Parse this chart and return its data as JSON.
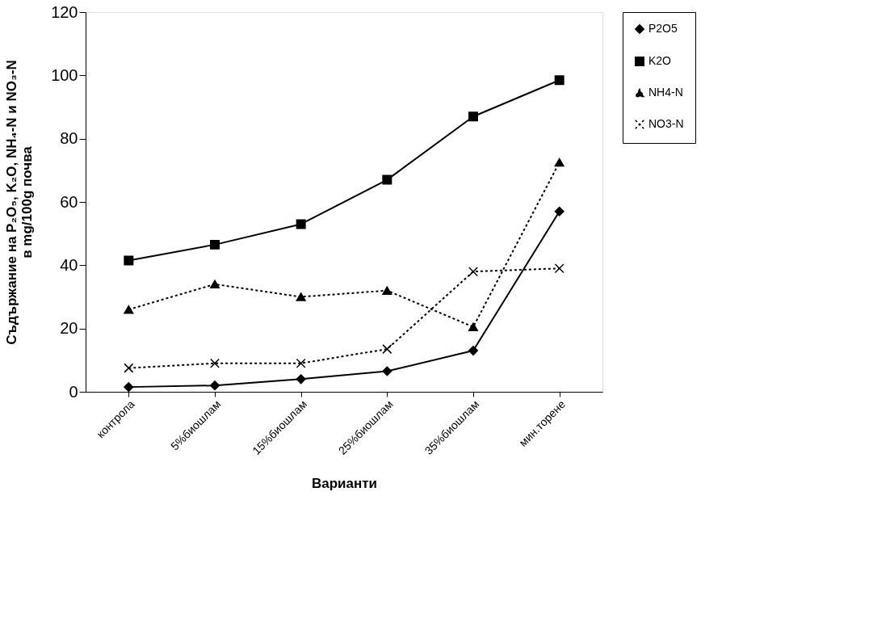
{
  "chart_data": {
    "type": "line",
    "xlabel": "Варианти",
    "ylabel": [
      "Съдържание на P₂O₅, K₂O, NH₄-N и  NO₃-N",
      "в mg/100g почва"
    ],
    "categories": [
      "контрола",
      "5%биошлам",
      "15%биошлам",
      "25%биошлам",
      "35%биошлам",
      "мин.торене"
    ],
    "ylim": [
      0,
      120
    ],
    "yticks": [
      0,
      20,
      40,
      60,
      80,
      100,
      120
    ],
    "grid": false,
    "legend": "right",
    "series": [
      {
        "name": "P2O5",
        "color": "#000000",
        "marker": "diamond",
        "line_style": "solid",
        "values": [
          1.5,
          2,
          4,
          6.5,
          13,
          57
        ]
      },
      {
        "name": "K2O",
        "color": "#000000",
        "marker": "square",
        "line_style": "solid",
        "values": [
          41.5,
          46.5,
          53,
          67,
          87,
          98.5
        ]
      },
      {
        "name": "NH4-N",
        "color": "#000000",
        "marker": "triangle",
        "line_style": "dotted",
        "values": [
          26,
          34,
          30,
          32,
          20.5,
          72.5
        ]
      },
      {
        "name": "NO3-N",
        "color": "#000000",
        "marker": "cross",
        "line_style": "dotted",
        "values": [
          7.5,
          9,
          9,
          13.5,
          38,
          39
        ]
      }
    ]
  }
}
